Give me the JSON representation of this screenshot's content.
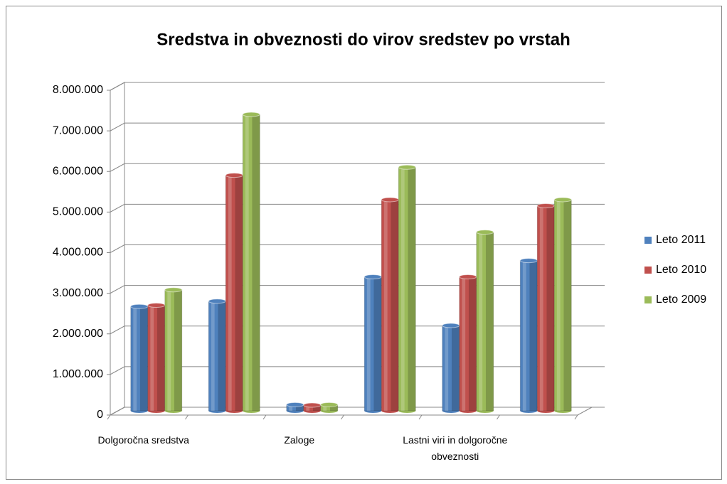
{
  "chart_data": {
    "type": "bar",
    "title": "Sredstva in obveznosti do virov sredstev po vrstah",
    "categories": [
      "Dolgoročna sredstva",
      null,
      "Zaloge",
      null,
      "Lastni viri in dolgoročne obveznosti",
      null
    ],
    "series": [
      {
        "name": "Leto 2011",
        "color": "#4f81bd",
        "values": [
          2570000,
          2700000,
          150000,
          3300000,
          2100000,
          3700000
        ]
      },
      {
        "name": "Leto 2010",
        "color": "#c0504d",
        "values": [
          2600000,
          5800000,
          140000,
          5200000,
          3300000,
          5050000
        ]
      },
      {
        "name": "Leto 2009",
        "color": "#9bbb59",
        "values": [
          2980000,
          7300000,
          150000,
          6000000,
          4400000,
          5200000
        ]
      }
    ],
    "ylim": [
      0,
      8000000
    ],
    "yticks": [
      0,
      {
        "value": 1000000,
        "label": "1.000.000"
      },
      {
        "value": 2000000,
        "label": "2.000.000"
      },
      {
        "value": 3000000,
        "label": "3.000.000"
      },
      {
        "value": 4000000,
        "label": "4.000.000"
      },
      {
        "value": 5000000,
        "label": "5.000.000"
      },
      {
        "value": 6000000,
        "label": "6.000.000"
      },
      {
        "value": 7000000,
        "label": "7.000.000"
      },
      {
        "value": 8000000,
        "label": "8.000.000"
      }
    ],
    "grid": true,
    "legend": "right"
  }
}
